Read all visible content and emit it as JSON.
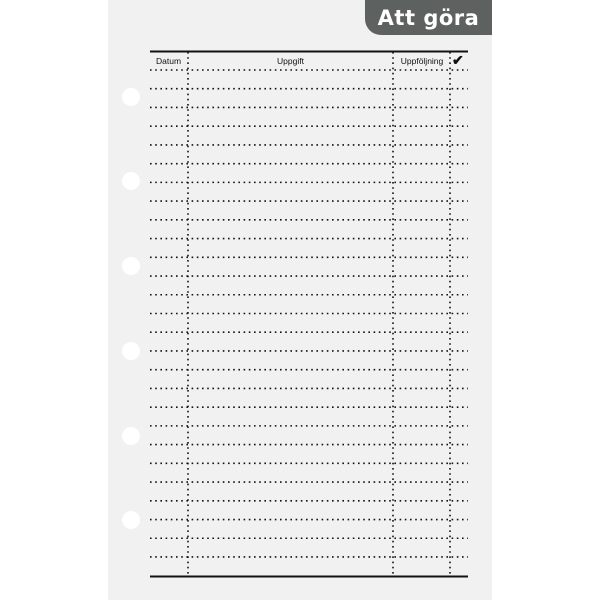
{
  "tab": {
    "title": "Att göra"
  },
  "table": {
    "columns": [
      "Datum",
      "Uppgift",
      "Uppföljning",
      "✔"
    ],
    "check_icon": "checkmark-icon"
  },
  "colors": {
    "tab": "#5d6261",
    "paper": "#f1f1f1",
    "lines": "#111111"
  }
}
